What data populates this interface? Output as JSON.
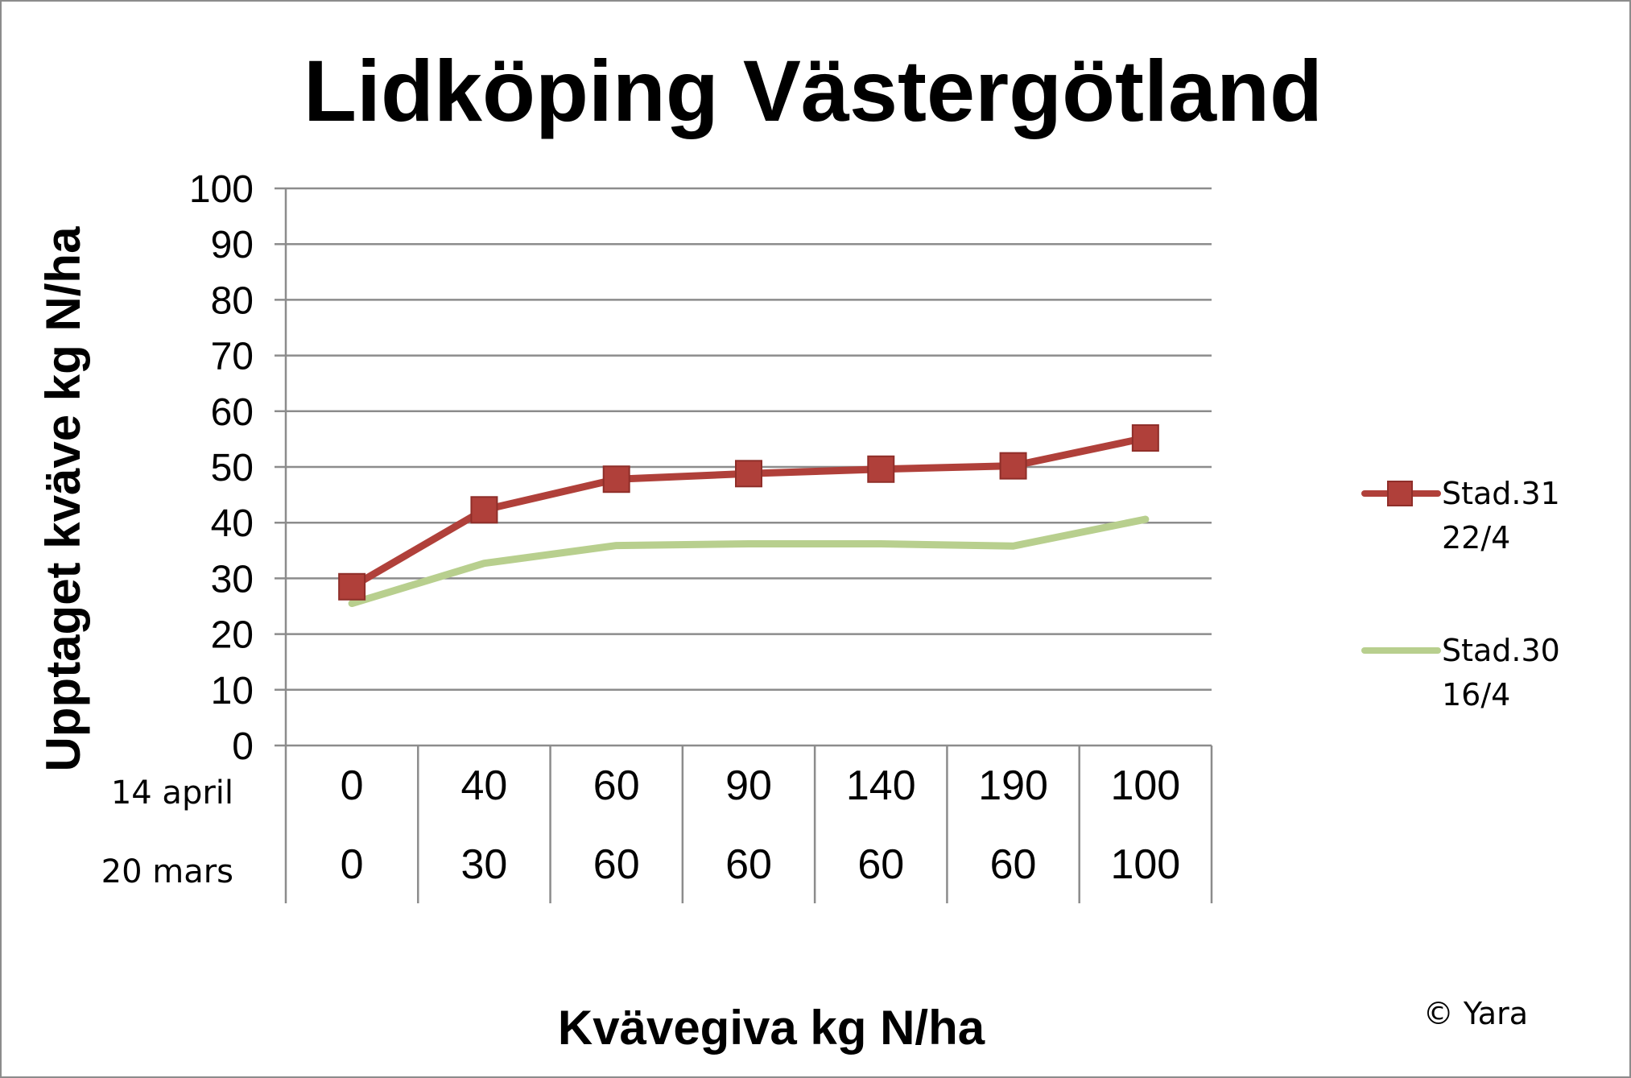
{
  "chart_data": {
    "type": "line",
    "title": "Lidköping Västergötland",
    "xlabel": "Kvävegiva kg N/ha",
    "ylabel": "Upptaget kväve kg N/ha",
    "ylim": [
      0,
      100
    ],
    "yticks": [
      "0",
      "10",
      "20",
      "30",
      "40",
      "50",
      "60",
      "70",
      "80",
      "90",
      "100"
    ],
    "grid": true,
    "legend_position": "right",
    "category_rows": [
      {
        "label": "14 april",
        "values": [
          "0",
          "40",
          "60",
          "90",
          "140",
          "190",
          "100"
        ]
      },
      {
        "label": "20 mars",
        "values": [
          "0",
          "30",
          "60",
          "60",
          "60",
          "60",
          "100"
        ]
      }
    ],
    "series": [
      {
        "name": "Stad.31 22/4",
        "name_lines": [
          "Stad.31",
          "22/4"
        ],
        "color": "#b0403a",
        "marker": "square",
        "values": [
          28.5,
          42.3,
          47.8,
          48.8,
          49.6,
          50.2,
          55.2
        ]
      },
      {
        "name": "Stad.30 16/4",
        "name_lines": [
          "Stad.30",
          "16/4"
        ],
        "color": "#b8cf8e",
        "marker": "none",
        "values": [
          25.5,
          32.7,
          35.9,
          36.2,
          36.2,
          35.8,
          40.6
        ]
      }
    ],
    "annotations": [
      "© Yara"
    ]
  },
  "colors": {
    "gridline": "#8c8c8c",
    "frame": "#8c8c8c"
  }
}
